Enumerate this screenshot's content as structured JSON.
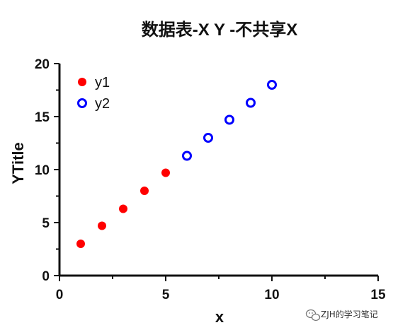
{
  "chart_data": {
    "type": "scatter",
    "title": "数据表-X Y -不共享X",
    "xlabel": "x",
    "ylabel": "YTitle",
    "xlim": [
      0,
      15
    ],
    "ylim": [
      0,
      20
    ],
    "xticks": [
      0,
      5,
      10,
      15
    ],
    "yticks": [
      0,
      5,
      10,
      15,
      20
    ],
    "grid": false,
    "legend_position": "top-left",
    "series": [
      {
        "name": "y1",
        "marker": "filled-circle",
        "color": "#ff0000",
        "x": [
          1,
          2,
          3,
          4,
          5
        ],
        "y": [
          3.0,
          4.7,
          6.3,
          8.0,
          9.7
        ]
      },
      {
        "name": "y2",
        "marker": "open-circle",
        "color": "#0000ff",
        "x": [
          6,
          7,
          8,
          9,
          10
        ],
        "y": [
          11.3,
          13.0,
          14.7,
          16.3,
          18.0
        ]
      }
    ]
  },
  "watermark": {
    "icon": "wechat-icon",
    "text": "ZJH的学习笔记"
  }
}
